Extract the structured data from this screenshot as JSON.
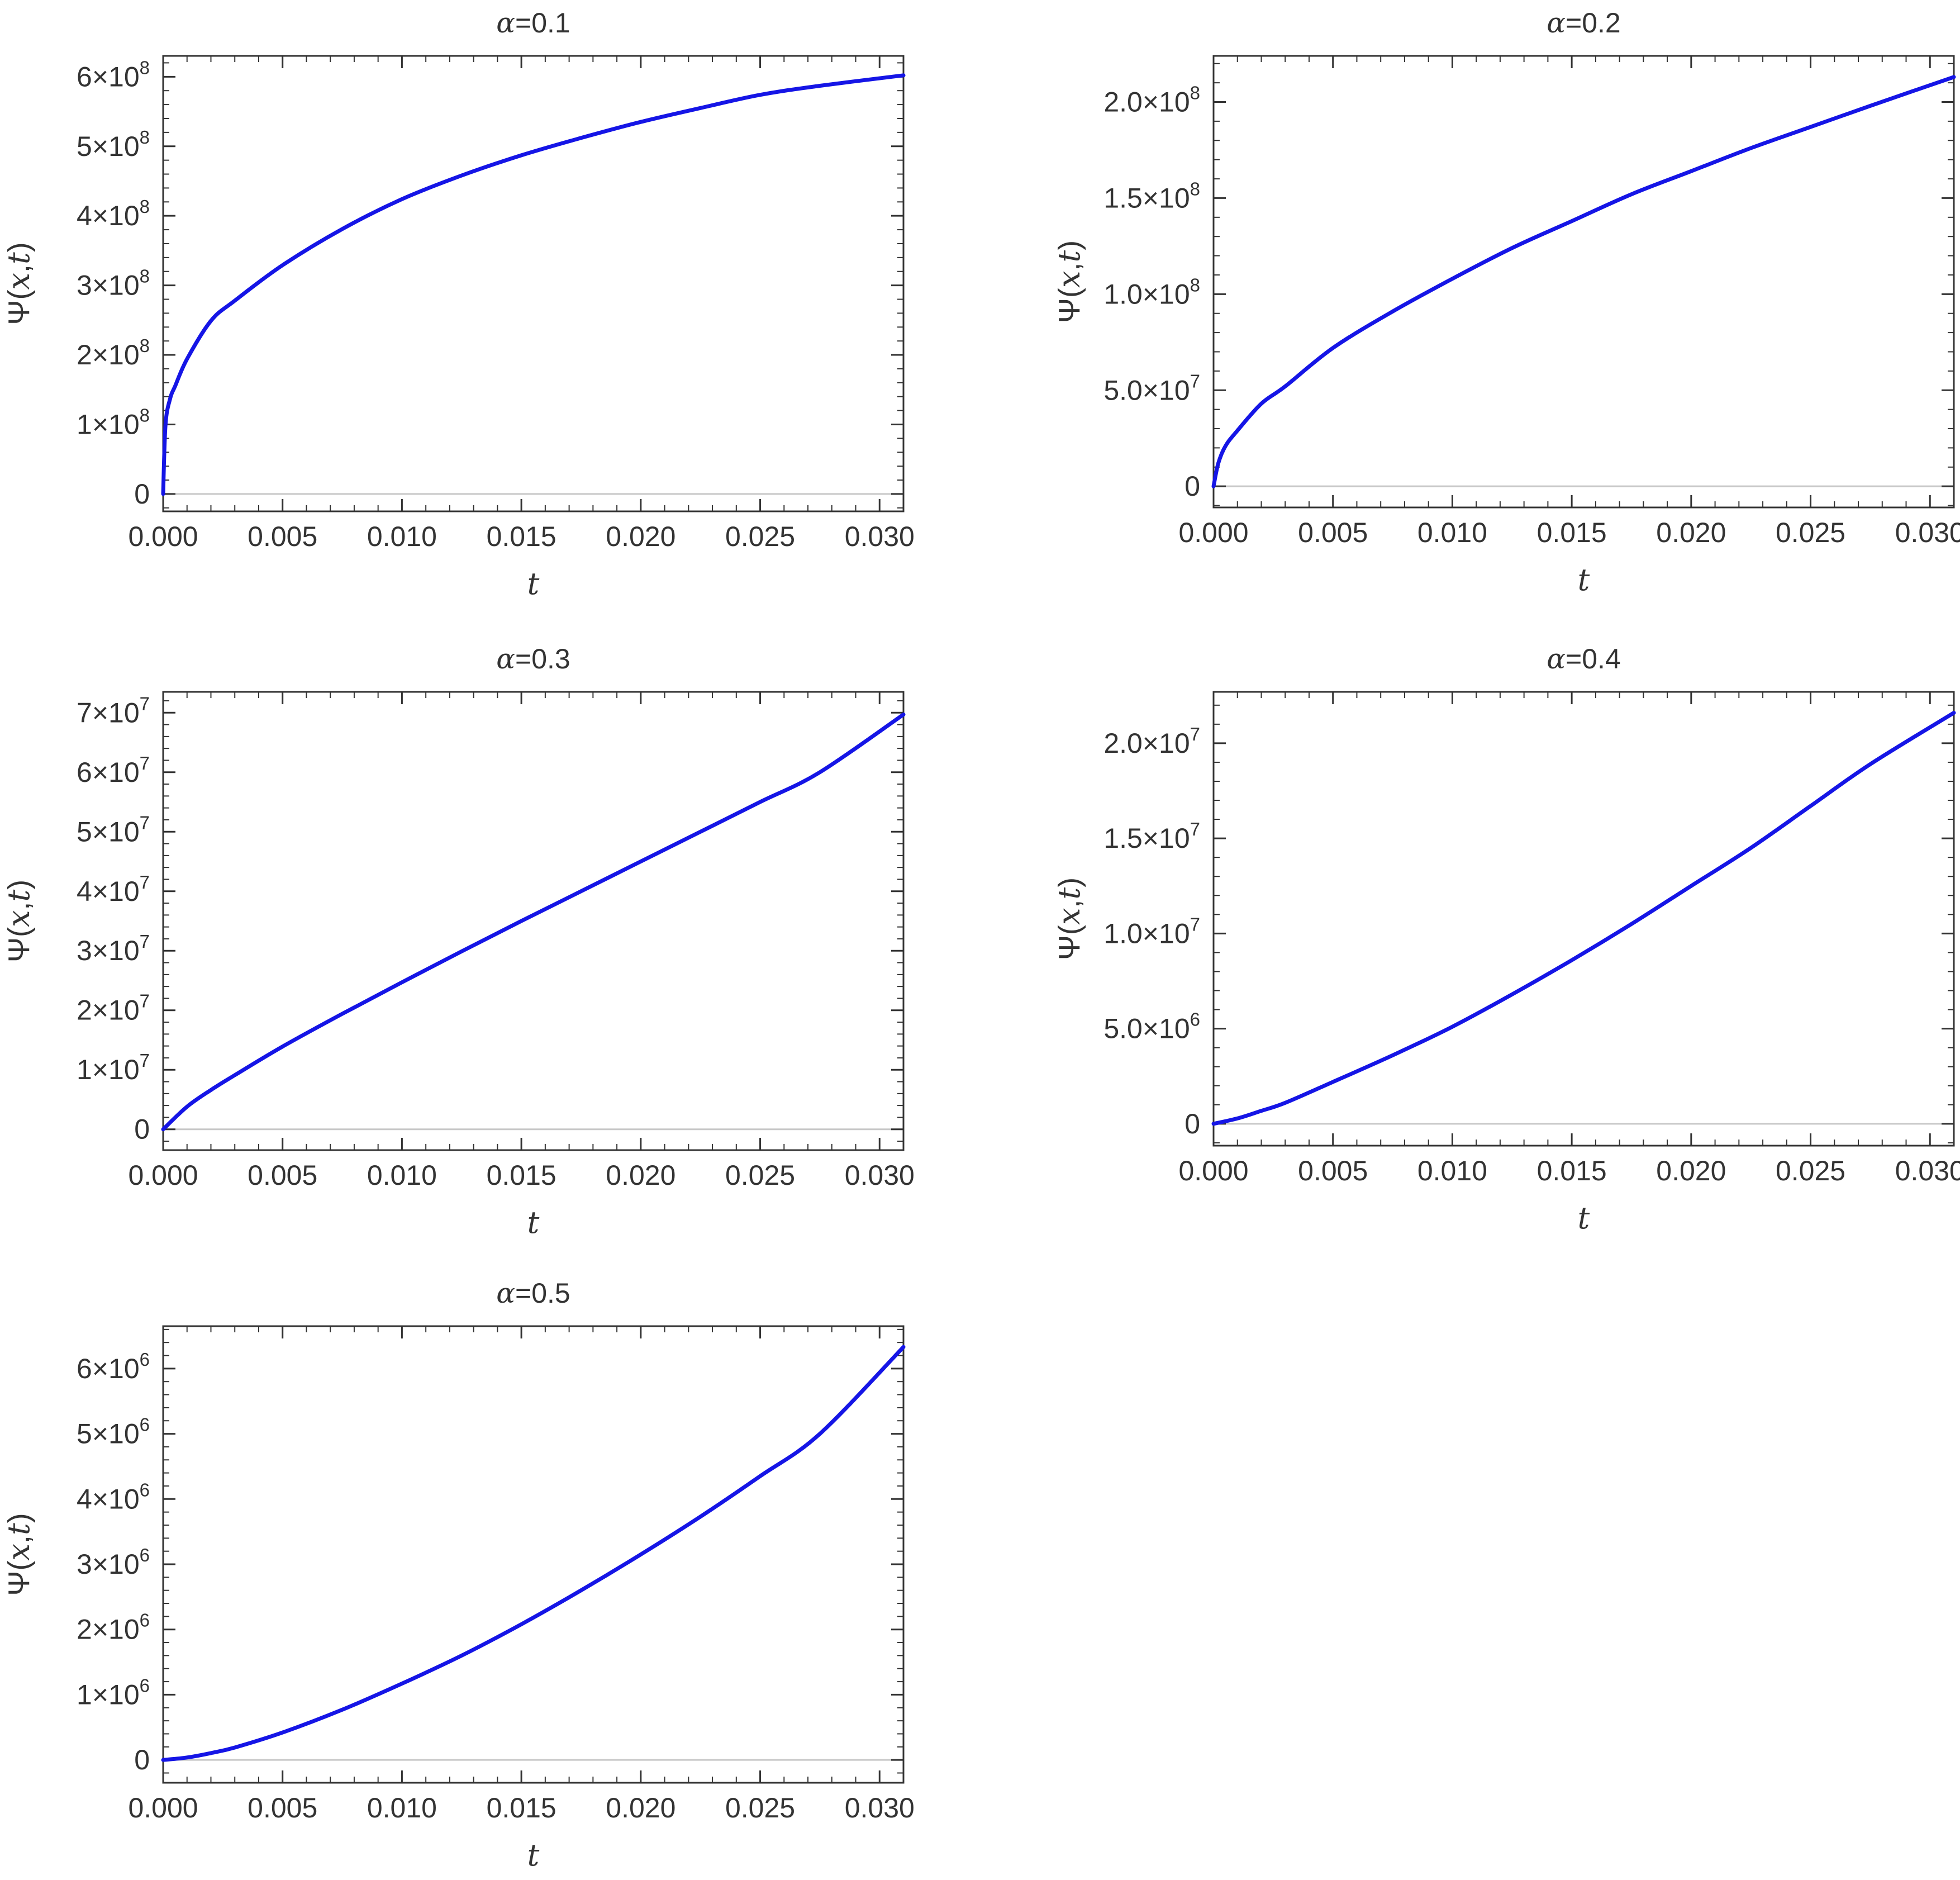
{
  "chart_data": [
    {
      "type": "line",
      "title": "α=0.1",
      "xlabel": "t",
      "ylabel": "Ψ(x,t)",
      "xlim": [
        0,
        0.031
      ],
      "ylim": [
        -25000000.0,
        630000000.0
      ],
      "xticks": [
        0,
        0.005,
        0.01,
        0.015,
        0.02,
        0.025,
        0.03
      ],
      "xtick_labels": [
        "0.000",
        "0.005",
        "0.010",
        "0.015",
        "0.020",
        "0.025",
        "0.030"
      ],
      "yticks": [
        0,
        100000000.0,
        200000000.0,
        300000000.0,
        400000000.0,
        500000000.0,
        600000000.0
      ],
      "ytick_labels": [
        {
          "mant": "0",
          "exp": ""
        },
        {
          "mant": "1×10",
          "exp": "8"
        },
        {
          "mant": "2×10",
          "exp": "8"
        },
        {
          "mant": "3×10",
          "exp": "8"
        },
        {
          "mant": "4×10",
          "exp": "8"
        },
        {
          "mant": "5×10",
          "exp": "8"
        },
        {
          "mant": "6×10",
          "exp": "8"
        }
      ],
      "series": [
        {
          "color": "#1515e6",
          "x": [
            0,
            0.0001,
            0.0003,
            0.0005,
            0.001,
            0.002,
            0.003,
            0.005,
            0.0075,
            0.01,
            0.0125,
            0.015,
            0.0175,
            0.02,
            0.0225,
            0.025,
            0.0275,
            0.031
          ],
          "y": [
            0,
            100000000.0,
            138000000.0,
            155000000.0,
            194000000.0,
            249000000.0,
            278000000.0,
            329000000.0,
            381000000.0,
            424000000.0,
            458000000.0,
            487000000.0,
            512000000.0,
            535000000.0,
            555000000.0,
            574000000.0,
            587000000.0,
            602000000.0
          ]
        }
      ]
    },
    {
      "type": "line",
      "title": "α=0.2",
      "xlabel": "t",
      "ylabel": "Ψ(x,t)",
      "xlim": [
        0,
        0.031
      ],
      "ylim": [
        -11000000.0,
        224000000.0
      ],
      "xticks": [
        0,
        0.005,
        0.01,
        0.015,
        0.02,
        0.025,
        0.03
      ],
      "xtick_labels": [
        "0.000",
        "0.005",
        "0.010",
        "0.015",
        "0.020",
        "0.025",
        "0.030"
      ],
      "yticks": [
        0,
        50000000.0,
        100000000.0,
        150000000.0,
        200000000.0
      ],
      "ytick_labels": [
        {
          "mant": "0",
          "exp": ""
        },
        {
          "mant": "5.0×10",
          "exp": "7"
        },
        {
          "mant": "1.0×10",
          "exp": "8"
        },
        {
          "mant": "1.5×10",
          "exp": "8"
        },
        {
          "mant": "2.0×10",
          "exp": "8"
        }
      ],
      "series": [
        {
          "color": "#1515e6",
          "x": [
            0,
            0.0002,
            0.0005,
            0.001,
            0.002,
            0.003,
            0.005,
            0.0075,
            0.01,
            0.0125,
            0.015,
            0.0175,
            0.02,
            0.0225,
            0.025,
            0.0275,
            0.031
          ],
          "y": [
            0,
            12000000.0,
            21000000.0,
            29000000.0,
            43000000.0,
            52000000.0,
            72000000.0,
            91000000.0,
            108000000.0,
            124000000.0,
            138000000.0,
            152000000.0,
            164000000.0,
            176000000.0,
            187000000.0,
            198000000.0,
            213000000.0
          ]
        }
      ]
    },
    {
      "type": "line",
      "title": "α=0.3",
      "xlabel": "t",
      "ylabel": "Ψ(x,t)",
      "xlim": [
        0,
        0.031
      ],
      "ylim": [
        -3500000.0,
        73500000.0
      ],
      "xticks": [
        0,
        0.005,
        0.01,
        0.015,
        0.02,
        0.025,
        0.03
      ],
      "xtick_labels": [
        "0.000",
        "0.005",
        "0.010",
        "0.015",
        "0.020",
        "0.025",
        "0.030"
      ],
      "yticks": [
        0,
        10000000.0,
        20000000.0,
        30000000.0,
        40000000.0,
        50000000.0,
        60000000.0,
        70000000.0
      ],
      "ytick_labels": [
        {
          "mant": "0",
          "exp": ""
        },
        {
          "mant": "1×10",
          "exp": "7"
        },
        {
          "mant": "2×10",
          "exp": "7"
        },
        {
          "mant": "3×10",
          "exp": "7"
        },
        {
          "mant": "4×10",
          "exp": "7"
        },
        {
          "mant": "5×10",
          "exp": "7"
        },
        {
          "mant": "6×10",
          "exp": "7"
        },
        {
          "mant": "7×10",
          "exp": "7"
        }
      ],
      "series": [
        {
          "color": "#1515e6",
          "x": [
            0,
            0.001,
            0.002,
            0.003,
            0.005,
            0.0075,
            0.01,
            0.0125,
            0.015,
            0.0175,
            0.02,
            0.0225,
            0.025,
            0.0275,
            0.031
          ],
          "y": [
            0,
            3800000.0,
            6600000.0,
            9100000.0,
            13900000.0,
            19400000.0,
            24700000.0,
            29900000.0,
            35000000.0,
            40000000.0,
            45000000.0,
            50000000.0,
            55000000.0,
            60000000.0,
            69700000.0
          ]
        }
      ]
    },
    {
      "type": "line",
      "title": "α=0.4",
      "xlabel": "t",
      "ylabel": "Ψ(x,t)",
      "xlim": [
        0,
        0.031
      ],
      "ylim": [
        -1150000.0,
        22700000.0
      ],
      "xticks": [
        0,
        0.005,
        0.01,
        0.015,
        0.02,
        0.025,
        0.03
      ],
      "xtick_labels": [
        "0.000",
        "0.005",
        "0.010",
        "0.015",
        "0.020",
        "0.025",
        "0.030"
      ],
      "yticks": [
        0,
        5000000.0,
        10000000.0,
        15000000.0,
        20000000.0
      ],
      "ytick_labels": [
        {
          "mant": "0",
          "exp": ""
        },
        {
          "mant": "5.0×10",
          "exp": "6"
        },
        {
          "mant": "1.0×10",
          "exp": "7"
        },
        {
          "mant": "1.5×10",
          "exp": "7"
        },
        {
          "mant": "2.0×10",
          "exp": "7"
        }
      ],
      "series": [
        {
          "color": "#1515e6",
          "x": [
            0,
            0.001,
            0.002,
            0.003,
            0.005,
            0.0075,
            0.01,
            0.0125,
            0.015,
            0.0175,
            0.02,
            0.0225,
            0.025,
            0.0275,
            0.031
          ],
          "y": [
            0,
            280000.0,
            680000.0,
            1100000.0,
            2200000.0,
            3600000.0,
            5100000.0,
            6800000.0,
            8600000.0,
            10500000.0,
            12500000.0,
            14500000.0,
            16700000.0,
            18900000.0,
            21600000.0
          ]
        }
      ]
    },
    {
      "type": "line",
      "title": "α=0.5",
      "xlabel": "t",
      "ylabel": "Ψ(x,t)",
      "xlim": [
        0,
        0.031
      ],
      "ylim": [
        -350000.0,
        6650000.0
      ],
      "xticks": [
        0,
        0.005,
        0.01,
        0.015,
        0.02,
        0.025,
        0.03
      ],
      "xtick_labels": [
        "0.000",
        "0.005",
        "0.010",
        "0.015",
        "0.020",
        "0.025",
        "0.030"
      ],
      "yticks": [
        0,
        1000000.0,
        2000000.0,
        3000000.0,
        4000000.0,
        5000000.0,
        6000000.0
      ],
      "ytick_labels": [
        {
          "mant": "0",
          "exp": ""
        },
        {
          "mant": "1×10",
          "exp": "6"
        },
        {
          "mant": "2×10",
          "exp": "6"
        },
        {
          "mant": "3×10",
          "exp": "6"
        },
        {
          "mant": "4×10",
          "exp": "6"
        },
        {
          "mant": "5×10",
          "exp": "6"
        },
        {
          "mant": "6×10",
          "exp": "6"
        }
      ],
      "series": [
        {
          "color": "#1515e6",
          "x": [
            0,
            0.001,
            0.002,
            0.003,
            0.005,
            0.0075,
            0.01,
            0.0125,
            0.015,
            0.0175,
            0.02,
            0.0225,
            0.025,
            0.0275,
            0.031
          ],
          "y": [
            0,
            37000.0,
            105000.0,
            190000.0,
            420000.0,
            770000.0,
            1170000.0,
            1600000.0,
            2080000.0,
            2600000.0,
            3150000.0,
            3730000.0,
            4350000.0,
            5000000.0,
            6330000.0
          ]
        }
      ]
    }
  ]
}
